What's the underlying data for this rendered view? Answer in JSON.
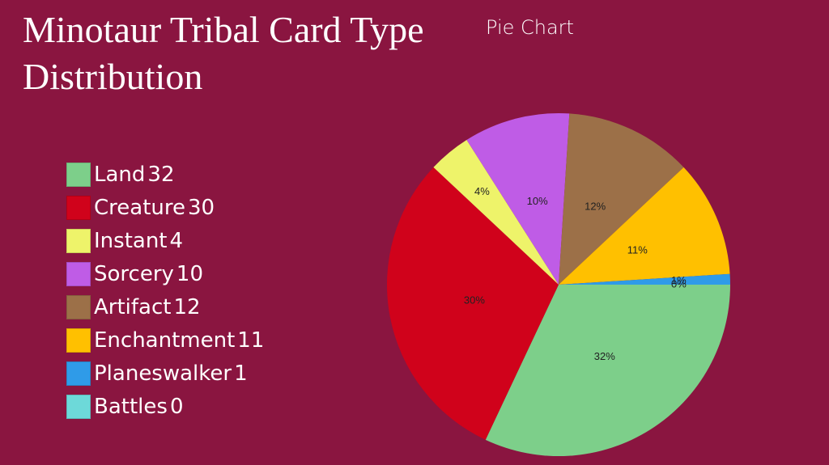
{
  "chart_data": {
    "type": "pie",
    "title": "Minotaur Tribal Card Type Distribution",
    "subtitle": "Pie Chart",
    "categories": [
      "Land",
      "Creature",
      "Instant",
      "Sorcery",
      "Artifact",
      "Enchantment",
      "Planeswalker",
      "Battles"
    ],
    "values": [
      32,
      30,
      4,
      10,
      12,
      11,
      1,
      0
    ],
    "value_labels": [
      "32%",
      "30%",
      "4%",
      "10%",
      "12%",
      "11%",
      "1%",
      "0%"
    ],
    "colors": [
      "#7dcf8a",
      "#d0021b",
      "#eef36a",
      "#bf5ce6",
      "#9c7048",
      "#ffc000",
      "#2f9be8",
      "#6dd9d9"
    ],
    "legend": "left"
  }
}
